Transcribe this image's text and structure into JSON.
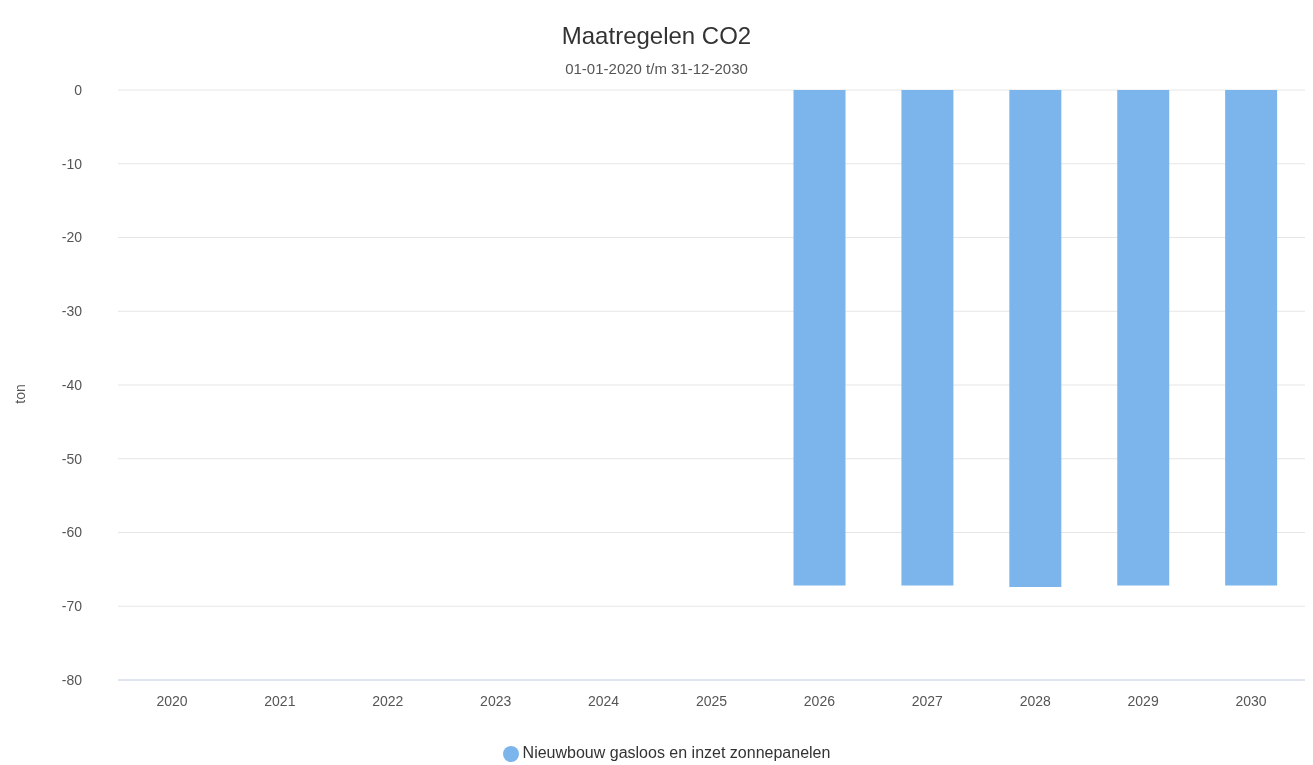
{
  "chart_data": {
    "type": "bar",
    "title": "Maatregelen CO2",
    "subtitle": "01-01-2020 t/m 31-12-2030",
    "ylabel": "ton",
    "categories": [
      "2020",
      "2021",
      "2022",
      "2023",
      "2024",
      "2025",
      "2026",
      "2027",
      "2028",
      "2029",
      "2030"
    ],
    "series": [
      {
        "name": "Nieuwbouw gasloos en inzet zonnepanelen",
        "color": "#7cb5ec",
        "values": [
          null,
          null,
          null,
          null,
          null,
          null,
          -67.2,
          -67.2,
          -67.4,
          -67.2,
          -67.2
        ]
      }
    ],
    "ylim": [
      -80,
      0
    ],
    "yticks": [
      -80,
      -70,
      -60,
      -50,
      -40,
      -30,
      -20,
      -10,
      0
    ],
    "grid": "y",
    "legend": "bottom"
  }
}
